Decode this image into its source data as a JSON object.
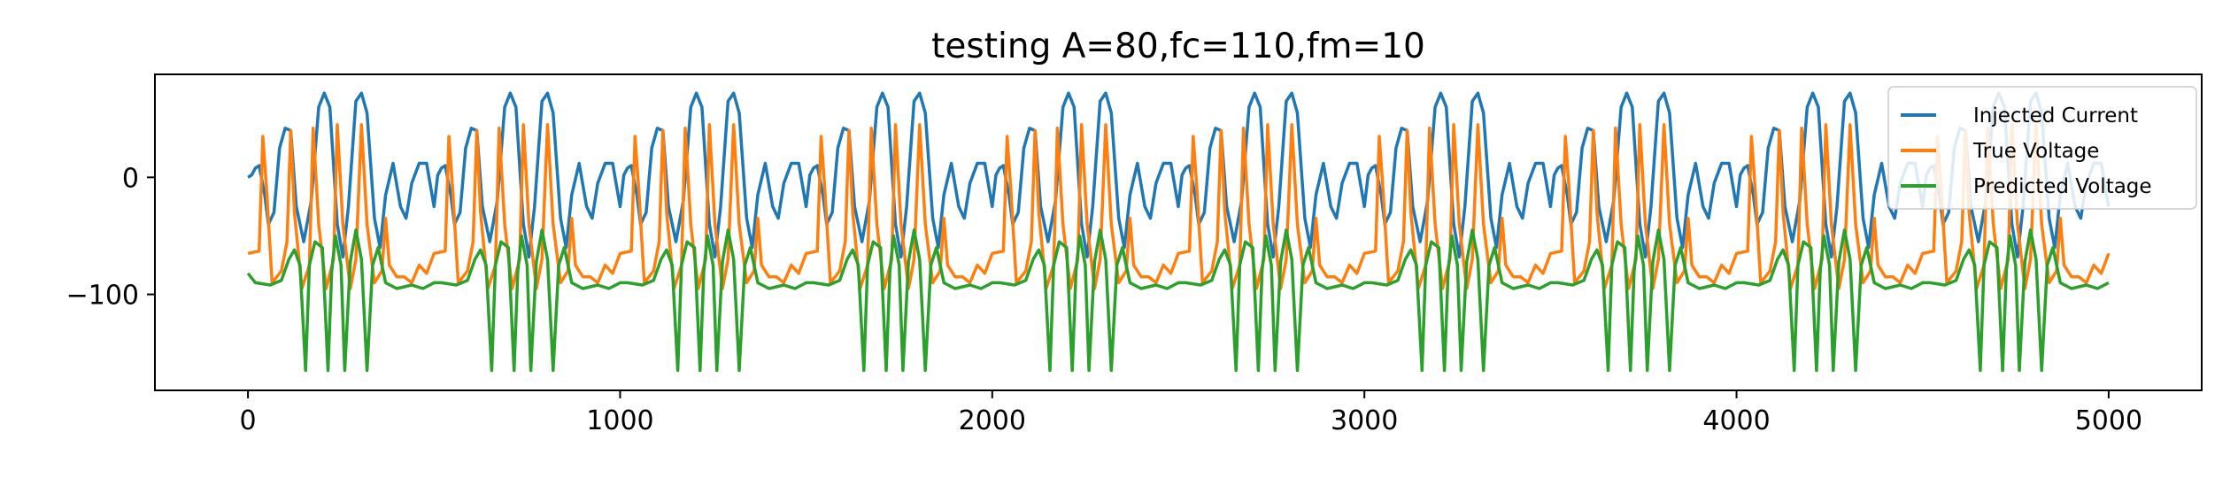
{
  "chart_data": {
    "type": "line",
    "title": "testing A=80,fc=110,fm=10",
    "xlabel": "",
    "ylabel": "",
    "xlim": [
      -250,
      5250
    ],
    "ylim": [
      -182,
      88
    ],
    "x_ticks": [
      0,
      1000,
      2000,
      3000,
      4000,
      5000
    ],
    "x_tick_labels": [
      "0",
      "1000",
      "2000",
      "3000",
      "4000",
      "5000"
    ],
    "y_ticks": [
      0,
      -100
    ],
    "y_tick_labels": [
      "0",
      "−100"
    ],
    "grid": false,
    "legend_position": "top-right",
    "x_range": [
      0,
      5000
    ],
    "period": 500,
    "series": [
      {
        "name": "Injected Current",
        "color": "#1f77b4",
        "description_points": [
          [
            0,
            0
          ],
          [
            10,
            2
          ],
          [
            20,
            8
          ],
          [
            30,
            10
          ],
          [
            45,
            -15
          ],
          [
            55,
            -40
          ],
          [
            70,
            -30
          ],
          [
            85,
            25
          ],
          [
            100,
            42
          ],
          [
            115,
            40
          ],
          [
            130,
            -25
          ],
          [
            150,
            -55
          ],
          [
            170,
            -20
          ],
          [
            190,
            60
          ],
          [
            205,
            72
          ],
          [
            220,
            60
          ],
          [
            240,
            -40
          ],
          [
            255,
            -68
          ],
          [
            270,
            -25
          ],
          [
            290,
            65
          ],
          [
            305,
            72
          ],
          [
            320,
            55
          ],
          [
            340,
            -35
          ],
          [
            355,
            -60
          ],
          [
            370,
            -15
          ],
          [
            390,
            12
          ],
          [
            410,
            -25
          ],
          [
            425,
            -35
          ],
          [
            440,
            -5
          ],
          [
            460,
            12
          ],
          [
            480,
            12
          ],
          [
            500,
            -25
          ]
        ]
      },
      {
        "name": "True Voltage",
        "color": "#ff7f0e",
        "description_points": [
          [
            0,
            -65
          ],
          [
            15,
            -64
          ],
          [
            30,
            -63
          ],
          [
            40,
            35
          ],
          [
            50,
            -10
          ],
          [
            65,
            -90
          ],
          [
            90,
            -80
          ],
          [
            105,
            -55
          ],
          [
            115,
            40
          ],
          [
            125,
            -30
          ],
          [
            145,
            -95
          ],
          [
            165,
            -75
          ],
          [
            175,
            42
          ],
          [
            190,
            -40
          ],
          [
            210,
            -95
          ],
          [
            230,
            -70
          ],
          [
            240,
            45
          ],
          [
            255,
            -40
          ],
          [
            275,
            -95
          ],
          [
            290,
            -70
          ],
          [
            305,
            45
          ],
          [
            320,
            -40
          ],
          [
            340,
            -90
          ],
          [
            360,
            -80
          ],
          [
            370,
            -35
          ],
          [
            380,
            -75
          ],
          [
            400,
            -85
          ],
          [
            420,
            -85
          ],
          [
            440,
            -90
          ],
          [
            460,
            -75
          ],
          [
            480,
            -82
          ],
          [
            500,
            -65
          ]
        ]
      },
      {
        "name": "Predicted Voltage",
        "color": "#2ca02c",
        "description_points": [
          [
            0,
            -82
          ],
          [
            20,
            -90
          ],
          [
            60,
            -92
          ],
          [
            90,
            -88
          ],
          [
            110,
            -70
          ],
          [
            125,
            -62
          ],
          [
            140,
            -75
          ],
          [
            155,
            -165
          ],
          [
            165,
            -75
          ],
          [
            180,
            -55
          ],
          [
            200,
            -60
          ],
          [
            215,
            -165
          ],
          [
            225,
            -80
          ],
          [
            235,
            -50
          ],
          [
            250,
            -75
          ],
          [
            260,
            -165
          ],
          [
            275,
            -72
          ],
          [
            290,
            -45
          ],
          [
            305,
            -70
          ],
          [
            320,
            -165
          ],
          [
            335,
            -75
          ],
          [
            350,
            -60
          ],
          [
            370,
            -90
          ],
          [
            400,
            -95
          ],
          [
            440,
            -92
          ],
          [
            470,
            -95
          ],
          [
            500,
            -90
          ]
        ]
      }
    ]
  }
}
